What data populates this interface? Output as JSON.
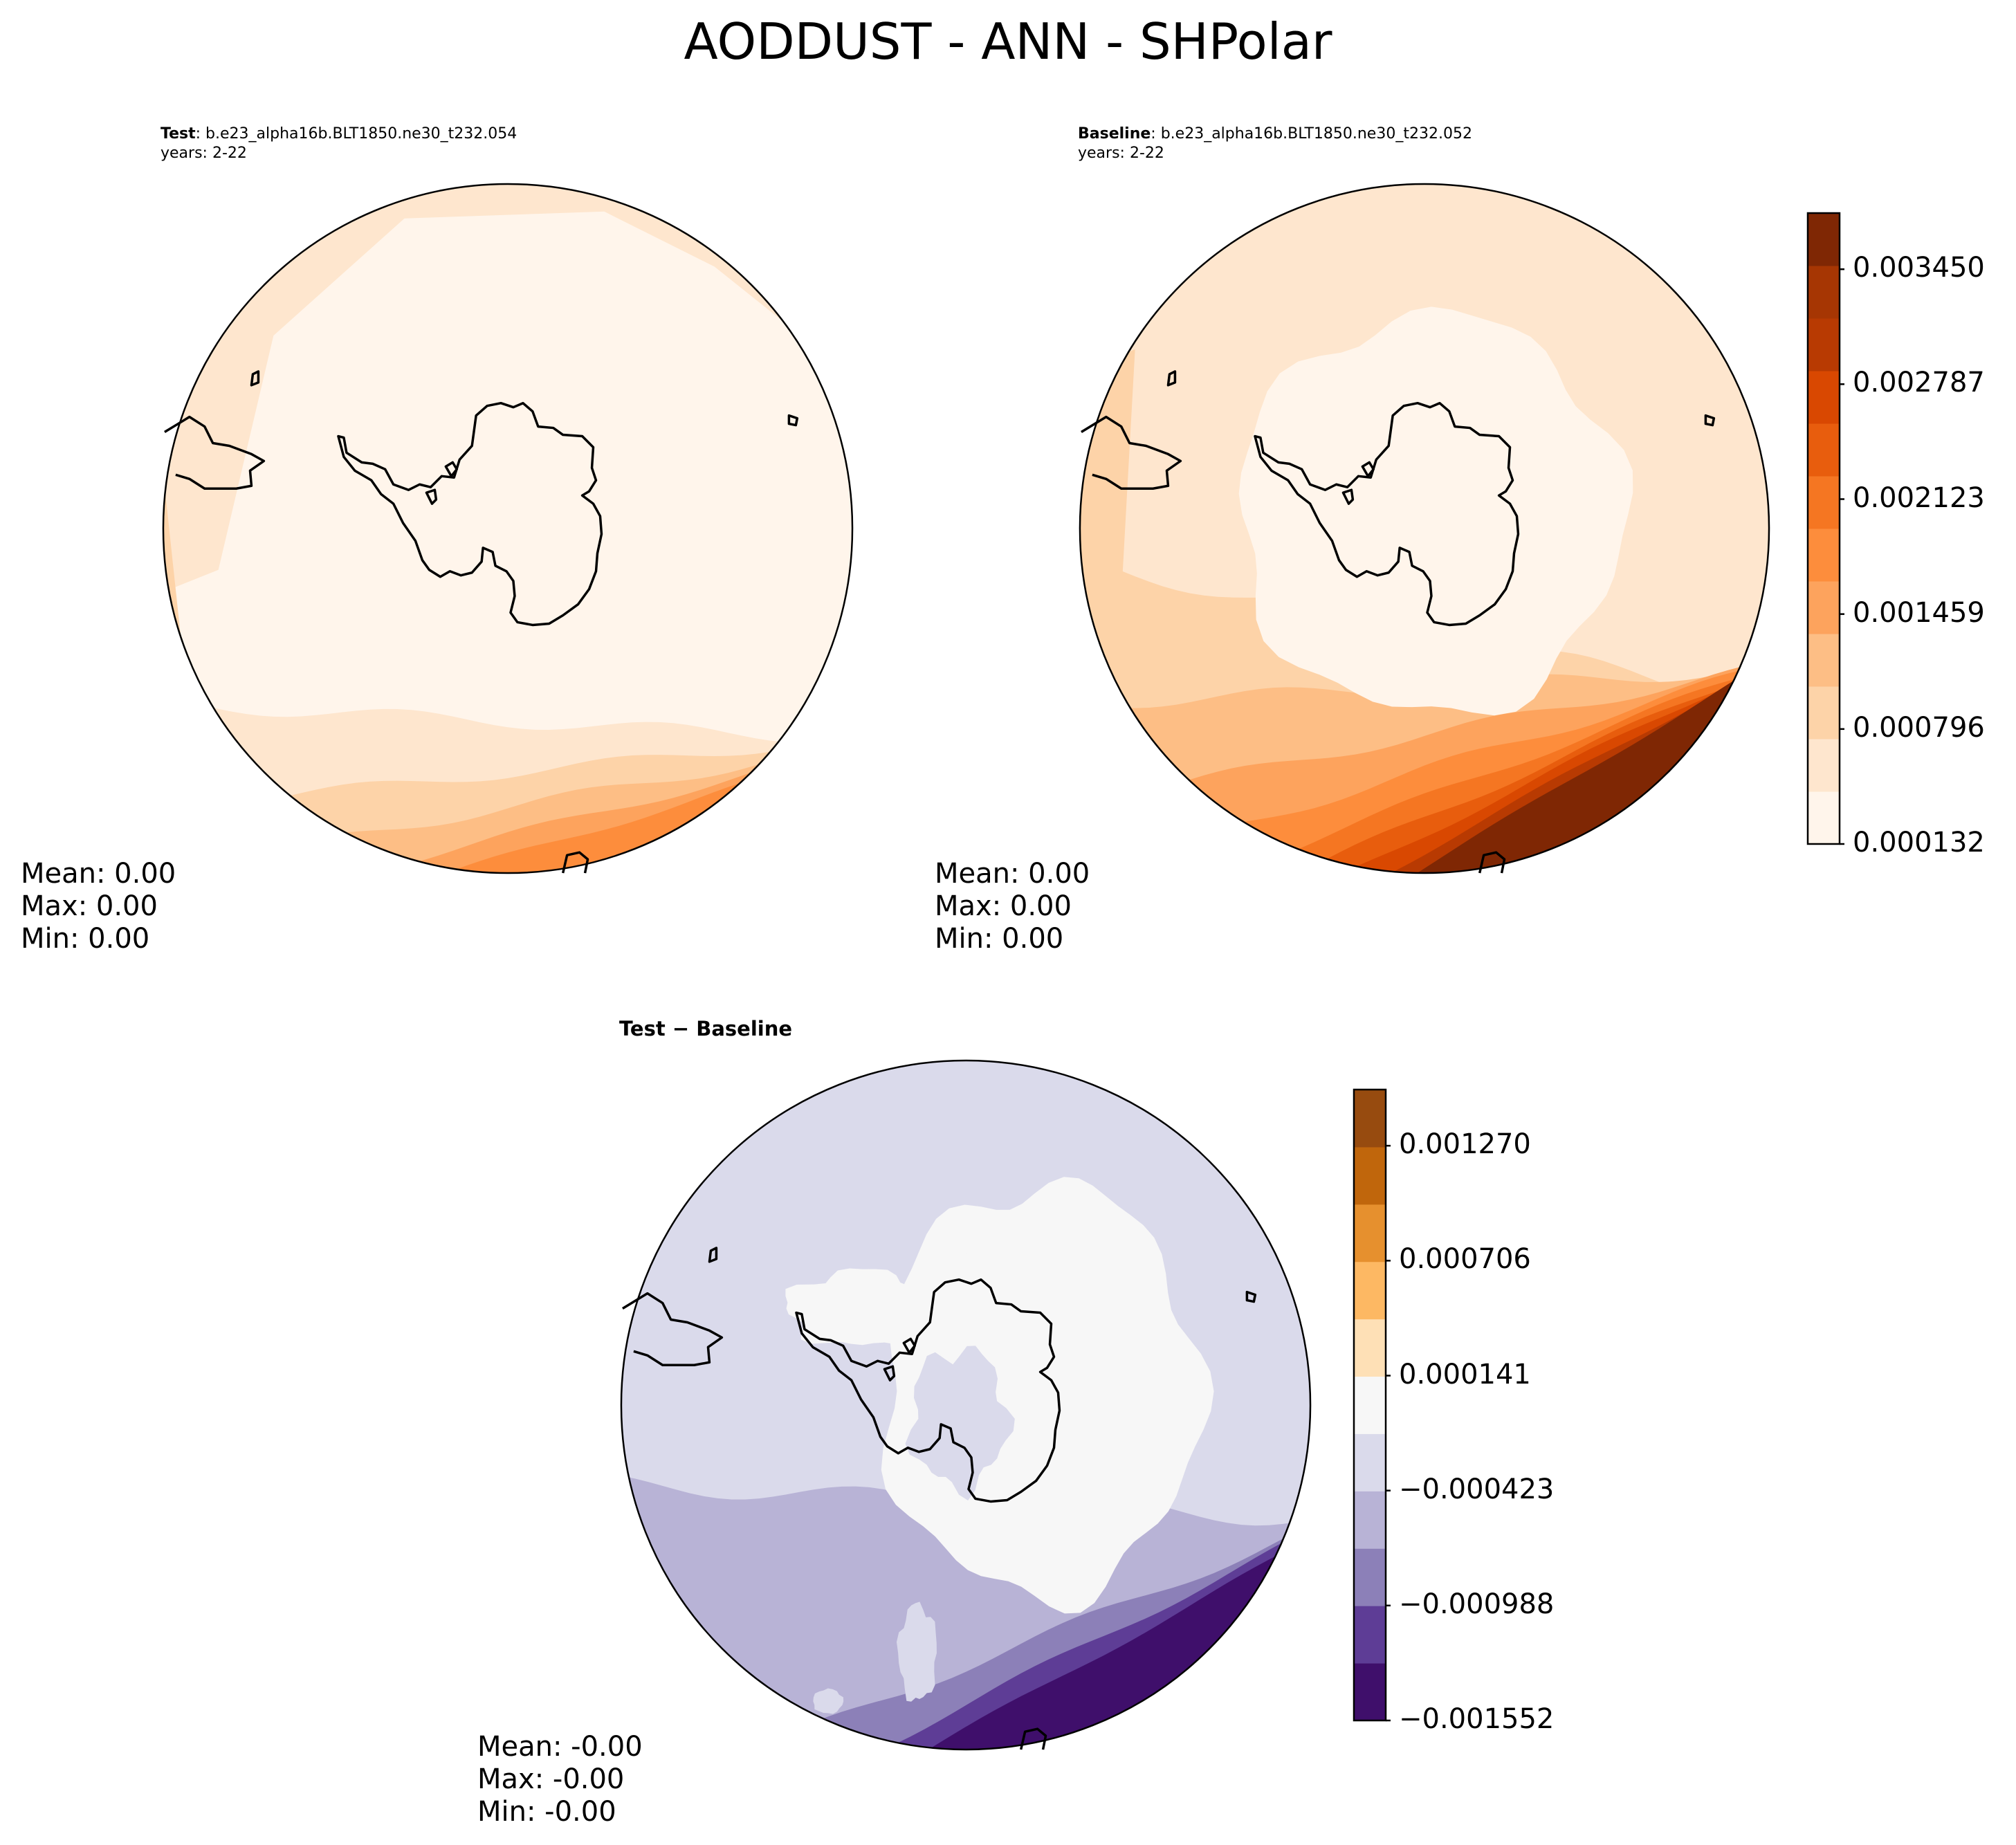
{
  "figure_title": "AODDUST - ANN - SHPolar",
  "panels": {
    "test": {
      "label": "Test",
      "case": ": b.e23_alpha16b.BLT1850.ne30_t232.054",
      "years": "years: 2-22",
      "mean": "Mean:  0.00",
      "max": "Max:  0.00",
      "min": "Min:  0.00"
    },
    "baseline": {
      "label": "Baseline",
      "case": ": b.e23_alpha16b.BLT1850.ne30_t232.052",
      "years": "years: 2-22",
      "mean": "Mean:  0.00",
      "max": "Max:  0.00",
      "min": "Min:  0.00"
    },
    "diff": {
      "title": "Test − Baseline",
      "mean": "Mean: -0.00",
      "max": "Max: -0.00",
      "min": "Min: -0.00"
    }
  },
  "chart_data": [
    {
      "type": "heatmap",
      "projection": "south-polar-stereographic",
      "panel": "test",
      "colormap": "Oranges",
      "levels": [
        0.000132,
        0.000464,
        0.000796,
        0.001128,
        0.001459,
        0.001791,
        0.002123,
        0.002455,
        0.002787,
        0.003119,
        0.00345,
        0.003782
      ]
    },
    {
      "type": "heatmap",
      "projection": "south-polar-stereographic",
      "panel": "baseline",
      "colormap": "Oranges",
      "levels": [
        0.000132,
        0.000464,
        0.000796,
        0.001128,
        0.001459,
        0.001791,
        0.002123,
        0.002455,
        0.002787,
        0.003119,
        0.00345,
        0.003782
      ],
      "colorbar": {
        "ticks": [
          "0.003450",
          "0.002787",
          "0.002123",
          "0.001459",
          "0.000796",
          "0.000132"
        ],
        "colors": [
          "#fff5eb",
          "#fee6ce",
          "#fdd3a8",
          "#fdbe85",
          "#fda35d",
          "#fd8d3c",
          "#f57622",
          "#e85d0d",
          "#d94801",
          "#b83a02",
          "#a63603",
          "#7f2704"
        ]
      }
    },
    {
      "type": "heatmap",
      "projection": "south-polar-stereographic",
      "panel": "diff",
      "colormap": "PuOr_r",
      "levels": [
        -0.001552,
        -0.00127,
        -0.000988,
        -0.000706,
        -0.000423,
        -0.000141,
        0.000141,
        0.000423,
        0.000706,
        0.000988,
        0.00127,
        0.001552
      ],
      "colorbar": {
        "ticks": [
          "0.001270",
          "0.000706",
          "0.000141",
          "−0.000423",
          "−0.000988",
          "−0.001552"
        ],
        "colors": [
          "#3f0f6b",
          "#5e3d96",
          "#8c80b8",
          "#b8b3d6",
          "#dadaeb",
          "#f7f7f7",
          "#fee0b6",
          "#fdb863",
          "#e6902e",
          "#c0660c",
          "#974b0f"
        ]
      }
    }
  ],
  "colors": {
    "coastline": "#000000",
    "background": "#ffffff"
  }
}
